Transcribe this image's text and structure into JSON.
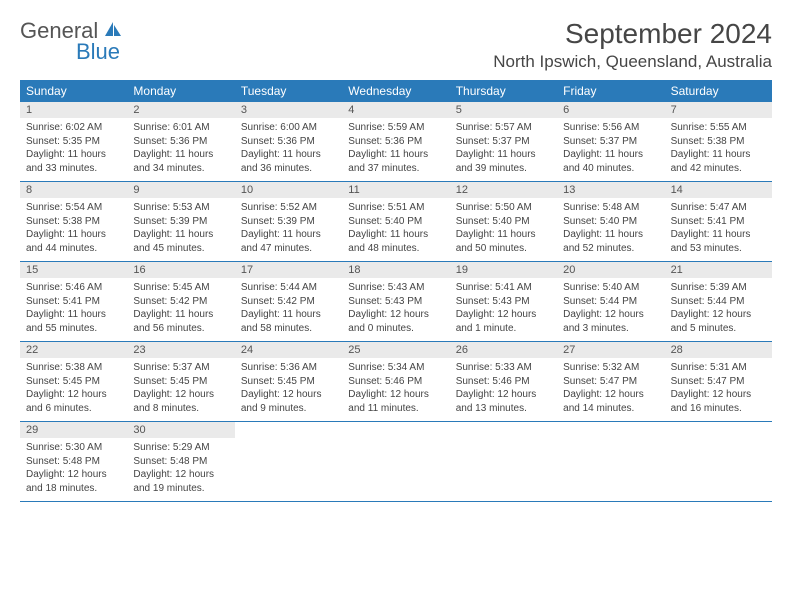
{
  "brand": {
    "text1": "General",
    "text2": "Blue",
    "icon_color": "#2a7ab9"
  },
  "title": "September 2024",
  "location": "North Ipswich, Queensland, Australia",
  "colors": {
    "header_bg": "#2a7ab9",
    "daynum_bg": "#eaeaea",
    "border": "#2a7ab9",
    "text": "#444"
  },
  "day_names": [
    "Sunday",
    "Monday",
    "Tuesday",
    "Wednesday",
    "Thursday",
    "Friday",
    "Saturday"
  ],
  "weeks": [
    [
      {
        "n": "1",
        "sunrise": "Sunrise: 6:02 AM",
        "sunset": "Sunset: 5:35 PM",
        "daylight": "Daylight: 11 hours and 33 minutes."
      },
      {
        "n": "2",
        "sunrise": "Sunrise: 6:01 AM",
        "sunset": "Sunset: 5:36 PM",
        "daylight": "Daylight: 11 hours and 34 minutes."
      },
      {
        "n": "3",
        "sunrise": "Sunrise: 6:00 AM",
        "sunset": "Sunset: 5:36 PM",
        "daylight": "Daylight: 11 hours and 36 minutes."
      },
      {
        "n": "4",
        "sunrise": "Sunrise: 5:59 AM",
        "sunset": "Sunset: 5:36 PM",
        "daylight": "Daylight: 11 hours and 37 minutes."
      },
      {
        "n": "5",
        "sunrise": "Sunrise: 5:57 AM",
        "sunset": "Sunset: 5:37 PM",
        "daylight": "Daylight: 11 hours and 39 minutes."
      },
      {
        "n": "6",
        "sunrise": "Sunrise: 5:56 AM",
        "sunset": "Sunset: 5:37 PM",
        "daylight": "Daylight: 11 hours and 40 minutes."
      },
      {
        "n": "7",
        "sunrise": "Sunrise: 5:55 AM",
        "sunset": "Sunset: 5:38 PM",
        "daylight": "Daylight: 11 hours and 42 minutes."
      }
    ],
    [
      {
        "n": "8",
        "sunrise": "Sunrise: 5:54 AM",
        "sunset": "Sunset: 5:38 PM",
        "daylight": "Daylight: 11 hours and 44 minutes."
      },
      {
        "n": "9",
        "sunrise": "Sunrise: 5:53 AM",
        "sunset": "Sunset: 5:39 PM",
        "daylight": "Daylight: 11 hours and 45 minutes."
      },
      {
        "n": "10",
        "sunrise": "Sunrise: 5:52 AM",
        "sunset": "Sunset: 5:39 PM",
        "daylight": "Daylight: 11 hours and 47 minutes."
      },
      {
        "n": "11",
        "sunrise": "Sunrise: 5:51 AM",
        "sunset": "Sunset: 5:40 PM",
        "daylight": "Daylight: 11 hours and 48 minutes."
      },
      {
        "n": "12",
        "sunrise": "Sunrise: 5:50 AM",
        "sunset": "Sunset: 5:40 PM",
        "daylight": "Daylight: 11 hours and 50 minutes."
      },
      {
        "n": "13",
        "sunrise": "Sunrise: 5:48 AM",
        "sunset": "Sunset: 5:40 PM",
        "daylight": "Daylight: 11 hours and 52 minutes."
      },
      {
        "n": "14",
        "sunrise": "Sunrise: 5:47 AM",
        "sunset": "Sunset: 5:41 PM",
        "daylight": "Daylight: 11 hours and 53 minutes."
      }
    ],
    [
      {
        "n": "15",
        "sunrise": "Sunrise: 5:46 AM",
        "sunset": "Sunset: 5:41 PM",
        "daylight": "Daylight: 11 hours and 55 minutes."
      },
      {
        "n": "16",
        "sunrise": "Sunrise: 5:45 AM",
        "sunset": "Sunset: 5:42 PM",
        "daylight": "Daylight: 11 hours and 56 minutes."
      },
      {
        "n": "17",
        "sunrise": "Sunrise: 5:44 AM",
        "sunset": "Sunset: 5:42 PM",
        "daylight": "Daylight: 11 hours and 58 minutes."
      },
      {
        "n": "18",
        "sunrise": "Sunrise: 5:43 AM",
        "sunset": "Sunset: 5:43 PM",
        "daylight": "Daylight: 12 hours and 0 minutes."
      },
      {
        "n": "19",
        "sunrise": "Sunrise: 5:41 AM",
        "sunset": "Sunset: 5:43 PM",
        "daylight": "Daylight: 12 hours and 1 minute."
      },
      {
        "n": "20",
        "sunrise": "Sunrise: 5:40 AM",
        "sunset": "Sunset: 5:44 PM",
        "daylight": "Daylight: 12 hours and 3 minutes."
      },
      {
        "n": "21",
        "sunrise": "Sunrise: 5:39 AM",
        "sunset": "Sunset: 5:44 PM",
        "daylight": "Daylight: 12 hours and 5 minutes."
      }
    ],
    [
      {
        "n": "22",
        "sunrise": "Sunrise: 5:38 AM",
        "sunset": "Sunset: 5:45 PM",
        "daylight": "Daylight: 12 hours and 6 minutes."
      },
      {
        "n": "23",
        "sunrise": "Sunrise: 5:37 AM",
        "sunset": "Sunset: 5:45 PM",
        "daylight": "Daylight: 12 hours and 8 minutes."
      },
      {
        "n": "24",
        "sunrise": "Sunrise: 5:36 AM",
        "sunset": "Sunset: 5:45 PM",
        "daylight": "Daylight: 12 hours and 9 minutes."
      },
      {
        "n": "25",
        "sunrise": "Sunrise: 5:34 AM",
        "sunset": "Sunset: 5:46 PM",
        "daylight": "Daylight: 12 hours and 11 minutes."
      },
      {
        "n": "26",
        "sunrise": "Sunrise: 5:33 AM",
        "sunset": "Sunset: 5:46 PM",
        "daylight": "Daylight: 12 hours and 13 minutes."
      },
      {
        "n": "27",
        "sunrise": "Sunrise: 5:32 AM",
        "sunset": "Sunset: 5:47 PM",
        "daylight": "Daylight: 12 hours and 14 minutes."
      },
      {
        "n": "28",
        "sunrise": "Sunrise: 5:31 AM",
        "sunset": "Sunset: 5:47 PM",
        "daylight": "Daylight: 12 hours and 16 minutes."
      }
    ],
    [
      {
        "n": "29",
        "sunrise": "Sunrise: 5:30 AM",
        "sunset": "Sunset: 5:48 PM",
        "daylight": "Daylight: 12 hours and 18 minutes."
      },
      {
        "n": "30",
        "sunrise": "Sunrise: 5:29 AM",
        "sunset": "Sunset: 5:48 PM",
        "daylight": "Daylight: 12 hours and 19 minutes."
      },
      null,
      null,
      null,
      null,
      null
    ]
  ]
}
